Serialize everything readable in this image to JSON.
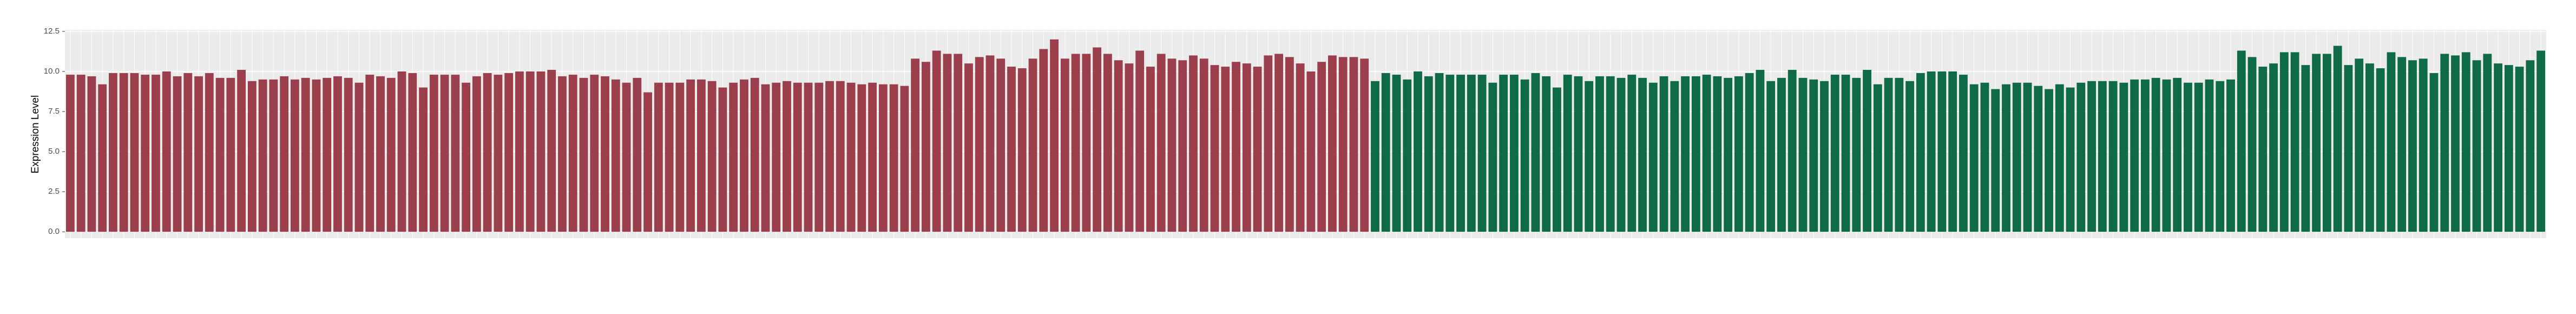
{
  "chart_data": {
    "type": "bar",
    "y_label": "Expression Level",
    "ylim": [
      -0.4,
      12.6
    ],
    "yticks": [
      {
        "value": 0,
        "label": "0.0"
      },
      {
        "value": 2.5,
        "label": "2.5"
      },
      {
        "value": 5,
        "label": "5.0"
      },
      {
        "value": 7.5,
        "label": "7.5"
      },
      {
        "value": 10,
        "label": "10.0"
      },
      {
        "value": 12.5,
        "label": "12.5"
      }
    ],
    "grid": true,
    "categories": [
      null,
      null,
      null,
      null,
      null,
      null,
      null,
      null,
      null,
      null,
      null,
      null,
      null,
      null,
      null,
      null,
      null,
      null,
      null,
      null,
      null,
      null,
      null,
      null,
      null,
      null,
      null,
      null,
      null,
      null,
      null,
      null,
      null,
      null,
      null,
      null,
      null,
      null,
      null,
      null,
      null,
      null,
      null,
      null,
      null,
      null,
      null,
      null,
      null,
      null,
      null,
      null,
      null,
      null,
      null,
      null,
      null,
      null,
      null,
      null,
      null,
      null,
      null,
      null,
      null,
      null,
      null,
      null,
      null,
      null,
      null,
      null,
      null,
      null,
      null,
      null,
      null,
      null,
      null,
      null,
      null,
      null,
      null,
      null,
      null,
      null,
      null,
      null,
      null,
      null,
      null,
      null,
      null,
      null,
      null,
      null,
      null,
      null,
      null,
      null,
      null,
      null,
      null,
      null,
      null,
      null,
      null,
      null,
      null,
      null,
      null,
      null,
      null,
      null,
      null,
      null,
      null,
      null,
      null,
      null,
      null,
      null,
      null,
      null,
      null,
      null,
      null,
      null,
      null,
      null,
      null,
      null,
      null,
      null,
      null,
      null,
      null,
      null,
      null,
      null,
      null,
      null,
      null,
      null,
      null,
      null,
      null,
      null,
      null,
      null,
      null,
      null,
      null,
      null,
      null,
      null,
      null,
      null,
      null,
      null,
      null,
      null,
      null,
      null,
      null,
      null,
      null,
      null,
      null,
      null,
      null,
      null,
      null,
      null,
      null,
      null,
      null,
      null,
      null,
      null,
      null,
      null,
      null,
      null,
      null,
      null,
      null,
      null,
      null,
      null,
      null,
      null,
      null,
      null,
      null,
      null,
      null,
      null,
      null,
      null,
      null,
      null,
      null,
      null,
      null,
      null,
      null,
      null,
      null,
      null,
      null,
      null,
      null,
      null,
      null,
      null,
      null,
      null,
      null,
      null,
      null,
      null,
      null,
      null,
      null,
      null,
      null,
      null,
      null,
      null,
      null,
      null
    ],
    "series": [
      {
        "color": "#9b3f4c",
        "values": [
          9.8,
          9.8,
          9.7,
          9.2,
          9.9,
          9.9,
          9.9,
          9.8,
          9.8,
          10.0,
          9.7,
          9.9,
          9.7,
          9.9,
          9.6,
          9.6,
          10.1,
          9.4,
          9.5,
          9.5,
          9.7,
          9.5,
          9.6,
          9.5,
          9.6,
          9.7,
          9.6,
          9.3,
          9.8,
          9.7,
          9.6,
          10.0,
          9.9,
          9.0,
          9.8,
          9.8,
          9.8,
          9.3,
          9.7,
          9.9,
          9.8,
          9.9,
          10.0,
          10.0,
          10.0,
          10.1,
          9.7,
          9.8,
          9.6,
          9.8,
          9.7,
          9.5,
          9.3,
          9.6,
          8.7,
          9.3,
          9.3,
          9.3,
          9.5,
          9.5,
          9.4,
          9.0,
          9.3,
          9.5,
          9.6,
          9.2,
          9.3,
          9.4,
          9.3,
          9.3,
          9.3,
          9.4,
          9.4,
          9.3,
          9.2,
          9.3,
          9.2,
          9.2,
          9.1,
          10.8,
          10.6,
          11.3,
          11.1,
          11.1,
          10.5,
          10.9,
          11.0,
          10.8,
          10.3,
          10.2,
          10.8,
          11.4,
          12.0,
          10.8,
          11.1,
          11.1,
          11.5,
          11.1,
          10.7,
          10.5,
          11.3,
          10.3,
          11.1,
          10.8,
          10.7,
          11.0,
          10.8,
          10.4,
          10.3,
          10.6,
          10.5,
          10.3,
          11.0,
          11.1,
          10.9,
          10.5,
          10.0,
          10.6,
          11.0,
          10.9,
          10.9,
          10.8,
          null,
          null,
          null,
          null,
          null,
          null,
          null,
          null,
          null,
          null,
          null,
          null,
          null,
          null,
          null,
          null,
          null,
          null,
          null,
          null,
          null,
          null,
          null,
          null,
          null,
          null,
          null,
          null,
          null,
          null,
          null,
          null,
          null,
          null,
          null,
          null,
          null,
          null,
          null,
          null,
          null,
          null,
          null,
          null,
          null,
          null,
          null,
          null,
          null,
          null,
          null,
          null,
          null,
          null,
          null,
          null,
          null,
          null,
          null,
          null,
          null,
          null,
          null,
          null,
          null,
          null,
          null,
          null,
          null,
          null,
          null,
          null,
          null,
          null,
          null,
          null,
          null,
          null,
          null,
          null,
          null,
          null,
          null,
          null,
          null,
          null,
          null,
          null,
          null,
          null,
          null,
          null,
          null,
          null,
          null,
          null,
          null,
          null,
          null,
          null,
          null,
          null,
          null,
          null,
          null,
          null,
          null,
          null,
          null,
          null
        ]
      },
      {
        "color": "#0f6b45",
        "values": [
          null,
          null,
          null,
          null,
          null,
          null,
          null,
          null,
          null,
          null,
          null,
          null,
          null,
          null,
          null,
          null,
          null,
          null,
          null,
          null,
          null,
          null,
          null,
          null,
          null,
          null,
          null,
          null,
          null,
          null,
          null,
          null,
          null,
          null,
          null,
          null,
          null,
          null,
          null,
          null,
          null,
          null,
          null,
          null,
          null,
          null,
          null,
          null,
          null,
          null,
          null,
          null,
          null,
          null,
          null,
          null,
          null,
          null,
          null,
          null,
          null,
          null,
          null,
          null,
          null,
          null,
          null,
          null,
          null,
          null,
          null,
          null,
          null,
          null,
          null,
          null,
          null,
          null,
          null,
          null,
          null,
          null,
          null,
          null,
          null,
          null,
          null,
          null,
          null,
          null,
          null,
          null,
          null,
          null,
          null,
          null,
          null,
          null,
          null,
          null,
          null,
          null,
          null,
          null,
          null,
          null,
          null,
          null,
          null,
          null,
          null,
          null,
          null,
          null,
          null,
          null,
          null,
          null,
          null,
          null,
          null,
          null,
          9.4,
          9.9,
          9.8,
          9.5,
          10.0,
          9.7,
          9.9,
          9.8,
          9.8,
          9.8,
          9.8,
          9.3,
          9.8,
          9.8,
          9.5,
          9.9,
          9.7,
          9.0,
          9.8,
          9.7,
          9.4,
          9.7,
          9.7,
          9.6,
          9.8,
          9.6,
          9.3,
          9.7,
          9.4,
          9.7,
          9.7,
          9.8,
          9.7,
          9.6,
          9.7,
          9.9,
          10.1,
          9.4,
          9.6,
          10.1,
          9.6,
          9.5,
          9.4,
          9.8,
          9.8,
          9.6,
          10.1,
          9.2,
          9.6,
          9.6,
          9.4,
          9.9,
          10.0,
          10.0,
          10.0,
          9.8,
          9.2,
          9.3,
          8.9,
          9.2,
          9.3,
          9.3,
          9.1,
          8.9,
          9.2,
          9.0,
          9.3,
          9.4,
          9.4,
          9.4,
          9.3,
          9.5,
          9.5,
          9.6,
          9.5,
          9.6,
          9.3,
          9.3,
          9.5,
          9.4,
          9.5,
          11.3,
          10.9,
          10.3,
          10.5,
          11.2,
          11.2,
          10.4,
          11.1,
          11.1,
          11.6,
          10.4,
          10.8,
          10.5,
          10.2,
          11.2,
          10.9,
          10.7,
          10.8,
          9.9,
          11.1,
          11.0,
          11.2,
          10.7,
          11.1,
          10.5,
          10.4,
          10.3,
          10.7,
          11.3
        ]
      }
    ]
  }
}
